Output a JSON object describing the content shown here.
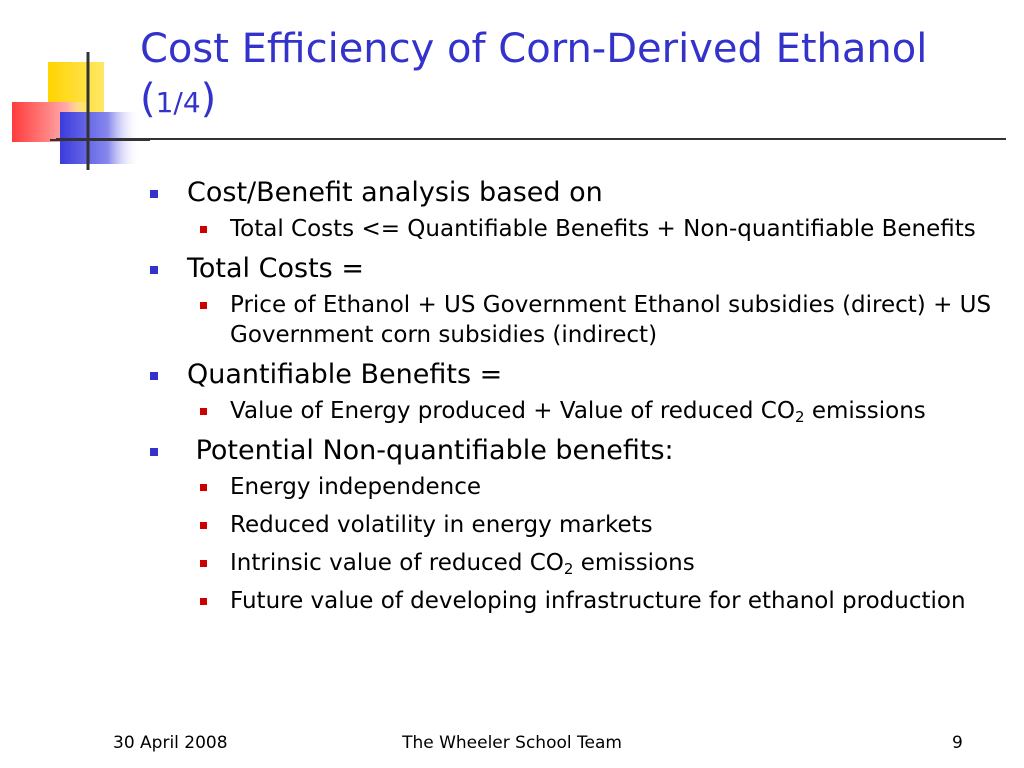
{
  "title": {
    "main": "Cost Efficiency of Corn-Derived Ethanol",
    "open": "(",
    "fraction": "1/4",
    "close": ")"
  },
  "bullets": [
    {
      "text": "Cost/Benefit analysis based on",
      "sub": [
        {
          "text": "Total Costs <= Quantifiable Benefits + Non-quantifiable Benefits"
        }
      ]
    },
    {
      "text": "Total Costs =",
      "sub": [
        {
          "text": "Price of Ethanol + US Government Ethanol subsidies (direct) + US Government corn subsidies (indirect)"
        }
      ]
    },
    {
      "text": "Quantifiable Benefits =",
      "sub": [
        {
          "pre": "Value of Energy produced + Value of reduced CO",
          "subscript": "2",
          "post": " emissions"
        }
      ]
    },
    {
      "text": " Potential Non-quantifiable benefits:",
      "sub": [
        {
          "text": "Energy independence"
        },
        {
          "text": "Reduced volatility in energy markets"
        },
        {
          "pre": "Intrinsic value of reduced CO",
          "subscript": "2",
          "post": " emissions"
        },
        {
          "text": "Future value of developing infrastructure for ethanol production"
        }
      ]
    }
  ],
  "footer": {
    "date": "30 April 2008",
    "team": "The Wheeler School Team",
    "page": "9"
  },
  "colors": {
    "title": "#3333cc",
    "bullet_level1": "#3333cc",
    "bullet_level2": "#cc0000",
    "deco_yellow": "#ffdd00",
    "deco_blue": "#4444dd",
    "deco_red": "#ff4444"
  }
}
